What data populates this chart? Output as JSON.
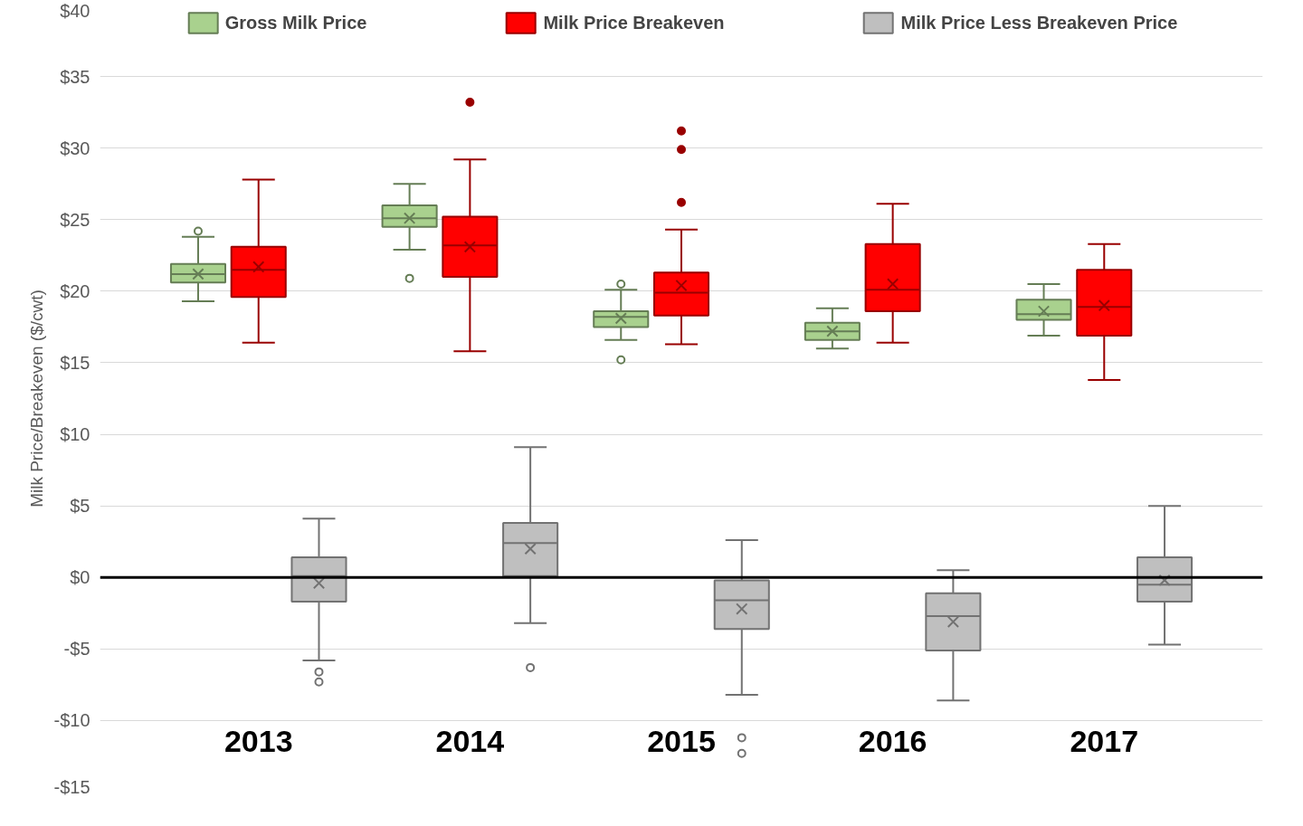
{
  "chart_data": {
    "type": "box",
    "ylabel": "Milk Price/Breakeven ($/cwt)",
    "categories": [
      "2013",
      "2014",
      "2015",
      "2016",
      "2017"
    ],
    "ylim": [
      -15,
      40
    ],
    "yticks": [
      {
        "value": -15,
        "label": "-$15"
      },
      {
        "value": -10,
        "label": "-$10"
      },
      {
        "value": -5,
        "label": "-$5"
      },
      {
        "value": 0,
        "label": "$0"
      },
      {
        "value": 5,
        "label": "$5"
      },
      {
        "value": 10,
        "label": "$10"
      },
      {
        "value": 15,
        "label": "$15"
      },
      {
        "value": 20,
        "label": "$20"
      },
      {
        "value": 25,
        "label": "$25"
      },
      {
        "value": 30,
        "label": "$30"
      },
      {
        "value": 35,
        "label": "$35"
      },
      {
        "value": 40,
        "label": "$40"
      }
    ],
    "grid": "y",
    "legend": "top",
    "ref_lines": [
      {
        "axis": "y",
        "value": 0,
        "label": null,
        "color": "#000000"
      }
    ],
    "series": [
      {
        "name": "Gross Milk Price",
        "color": "#a9d18e",
        "boxes": [
          {
            "low": 19.3,
            "q1": 20.6,
            "median": 21.2,
            "q3": 21.9,
            "high": 23.8,
            "mean": 21.2,
            "outliers": [
              24.2
            ]
          },
          {
            "low": 22.9,
            "q1": 24.5,
            "median": 25.1,
            "q3": 26.0,
            "high": 27.5,
            "mean": 25.1,
            "outliers": [
              20.9
            ]
          },
          {
            "low": 16.6,
            "q1": 17.5,
            "median": 18.2,
            "q3": 18.6,
            "high": 20.1,
            "mean": 18.1,
            "outliers": [
              20.5,
              15.2
            ]
          },
          {
            "low": 16.0,
            "q1": 16.6,
            "median": 17.2,
            "q3": 17.8,
            "high": 18.8,
            "mean": 17.2
          },
          {
            "low": 16.9,
            "q1": 18.0,
            "median": 18.4,
            "q3": 19.4,
            "high": 20.5,
            "mean": 18.6
          }
        ]
      },
      {
        "name": "Milk Price Breakeven",
        "color": "#ff0000",
        "boxes": [
          {
            "low": 16.4,
            "q1": 19.6,
            "median": 21.5,
            "q3": 23.1,
            "high": 27.8,
            "mean": 21.7
          },
          {
            "low": 15.8,
            "q1": 21.0,
            "median": 23.2,
            "q3": 25.2,
            "high": 29.2,
            "mean": 23.1,
            "outliers": [
              33.2
            ]
          },
          {
            "low": 16.3,
            "q1": 18.3,
            "median": 19.9,
            "q3": 21.3,
            "high": 24.3,
            "mean": 20.4,
            "outliers": [
              31.2,
              29.9,
              26.2
            ]
          },
          {
            "low": 16.4,
            "q1": 18.6,
            "median": 20.1,
            "q3": 23.3,
            "high": 26.1,
            "mean": 20.5
          },
          {
            "low": 13.8,
            "q1": 16.9,
            "median": 18.9,
            "q3": 21.5,
            "high": 23.3,
            "mean": 19.0
          }
        ]
      },
      {
        "name": "Milk Price Less Breakeven Price",
        "color": "#bfbfbf",
        "boxes": [
          {
            "low": -5.8,
            "q1": -1.7,
            "median": 0.1,
            "q3": 1.4,
            "high": 4.1,
            "mean": -0.4,
            "outliers": [
              -6.6,
              -7.3
            ]
          },
          {
            "low": -3.2,
            "q1": 0.1,
            "median": 2.4,
            "q3": 3.8,
            "high": 9.1,
            "mean": 2.0,
            "outliers": [
              -6.3
            ]
          },
          {
            "low": -8.2,
            "q1": -3.6,
            "median": -1.6,
            "q3": -0.2,
            "high": 2.6,
            "mean": -2.2,
            "outliers": [
              -11.2,
              -12.3
            ]
          },
          {
            "low": -8.6,
            "q1": -5.1,
            "median": -2.7,
            "q3": -1.1,
            "high": 0.5,
            "mean": -3.1
          },
          {
            "low": -4.7,
            "q1": -1.7,
            "median": -0.5,
            "q3": 1.4,
            "high": 5.0,
            "mean": -0.2
          }
        ]
      }
    ]
  }
}
